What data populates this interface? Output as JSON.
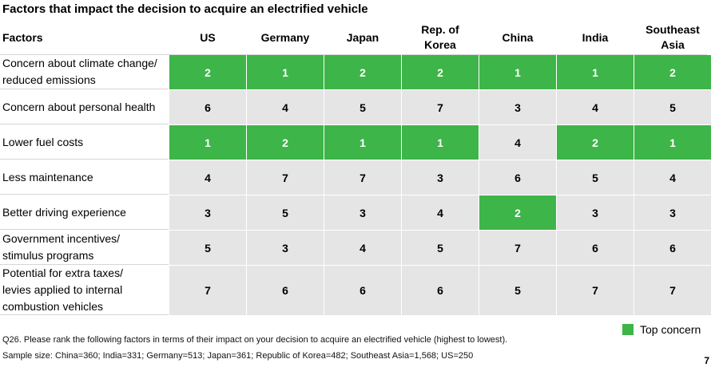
{
  "title": "Factors that impact the decision to acquire an electrified vehicle",
  "chart_data": {
    "type": "table",
    "title": "Factors that impact the decision to acquire an electrified vehicle",
    "header": "Factors",
    "columns": [
      "US",
      "Germany",
      "Japan",
      "Rep. of Korea",
      "China",
      "India",
      "Southeast Asia"
    ],
    "rows": [
      {
        "label": "Concern about climate change/ reduced emissions",
        "values": [
          2,
          1,
          2,
          2,
          1,
          1,
          2
        ],
        "top": [
          true,
          true,
          true,
          true,
          true,
          true,
          true
        ]
      },
      {
        "label": "Concern about personal health",
        "values": [
          6,
          4,
          5,
          7,
          3,
          4,
          5
        ],
        "top": [
          false,
          false,
          false,
          false,
          false,
          false,
          false
        ]
      },
      {
        "label": "Lower fuel costs",
        "values": [
          1,
          2,
          1,
          1,
          4,
          2,
          1
        ],
        "top": [
          true,
          true,
          true,
          true,
          false,
          true,
          true
        ]
      },
      {
        "label": "Less maintenance",
        "values": [
          4,
          7,
          7,
          3,
          6,
          5,
          4
        ],
        "top": [
          false,
          false,
          false,
          false,
          false,
          false,
          false
        ]
      },
      {
        "label": "Better driving experience",
        "values": [
          3,
          5,
          3,
          4,
          2,
          3,
          3
        ],
        "top": [
          false,
          false,
          false,
          false,
          true,
          false,
          false
        ]
      },
      {
        "label": "Government incentives/ stimulus programs",
        "values": [
          5,
          3,
          4,
          5,
          7,
          6,
          6
        ],
        "top": [
          false,
          false,
          false,
          false,
          false,
          false,
          false
        ]
      },
      {
        "label": "Potential for extra taxes/ levies applied to internal combustion vehicles",
        "values": [
          7,
          6,
          6,
          6,
          5,
          7,
          7
        ],
        "top": [
          false,
          false,
          false,
          false,
          false,
          false,
          false
        ]
      }
    ],
    "legend": "Top concern",
    "highlight_color": "#3db548",
    "default_color": "#e5e5e5"
  },
  "footnote": "Q26. Please rank the following factors in terms of their impact on your decision to acquire an electrified vehicle (highest to lowest).",
  "sample": "Sample size: China=360; India=331; Germany=513; Japan=361; Republic of Korea=482; Southeast Asia=1,568; US=250",
  "page_number": "7"
}
